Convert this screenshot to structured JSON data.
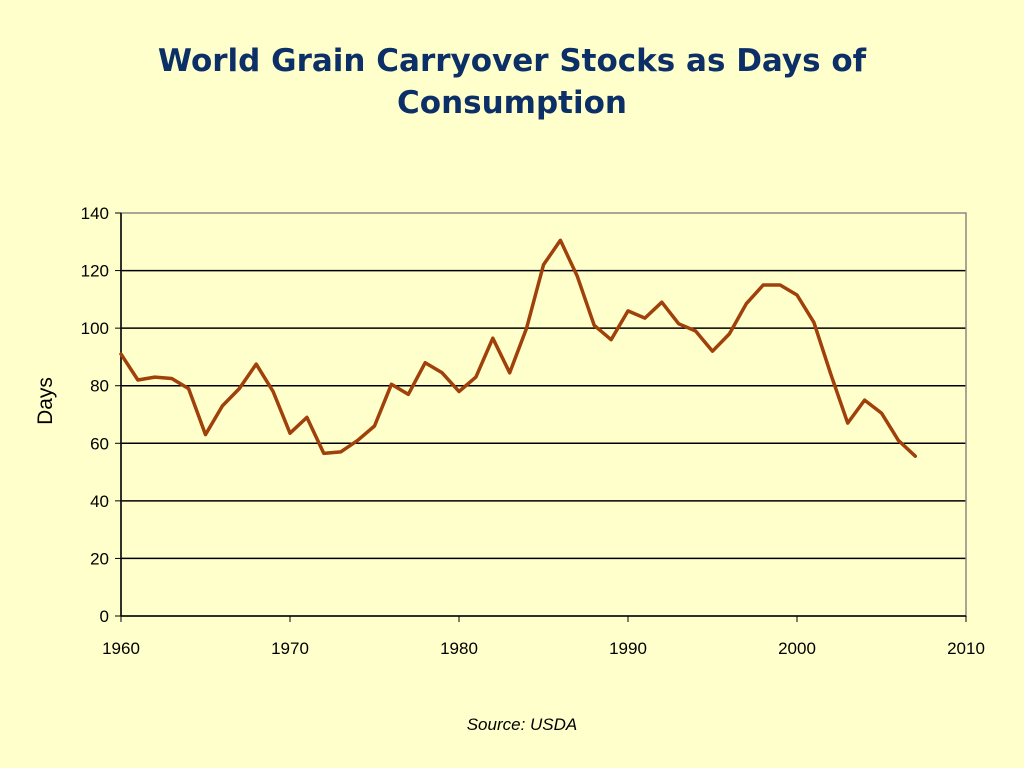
{
  "slide": {
    "title_line1": "World Grain Carryover Stocks as Days of",
    "title_line2": "Consumption",
    "source": "Source: USDA",
    "background": "#FFFFCC",
    "title_color": "#0B2F66"
  },
  "chart_data": {
    "type": "line",
    "title": "World Grain Carryover Stocks as Days of Consumption",
    "xlabel": "",
    "ylabel": "Days",
    "xlim": [
      1960,
      2010
    ],
    "ylim": [
      0,
      140
    ],
    "xticks": [
      1960,
      1970,
      1980,
      1990,
      2000,
      2010
    ],
    "yticks": [
      0,
      20,
      40,
      60,
      80,
      100,
      120,
      140
    ],
    "grid": "horizontal",
    "line_color": "#A0400A",
    "x": [
      1960,
      1961,
      1962,
      1963,
      1964,
      1965,
      1966,
      1967,
      1968,
      1969,
      1970,
      1971,
      1972,
      1973,
      1974,
      1975,
      1976,
      1977,
      1978,
      1979,
      1980,
      1981,
      1982,
      1983,
      1984,
      1985,
      1986,
      1987,
      1988,
      1989,
      1990,
      1991,
      1992,
      1993,
      1994,
      1995,
      1996,
      1997,
      1998,
      1999,
      2000,
      2001,
      2002,
      2003,
      2004,
      2005,
      2006,
      2007
    ],
    "series": [
      {
        "values": [
          91,
          82,
          83,
          82.5,
          79,
          63,
          73,
          79,
          87.5,
          78,
          63.5,
          69,
          56.5,
          57,
          61,
          66,
          80.5,
          77,
          88,
          84.5,
          78,
          83,
          96.5,
          84.5,
          100,
          122,
          130.5,
          118,
          101,
          96,
          106,
          103.5,
          109,
          101.5,
          99,
          92,
          98,
          108.5,
          115,
          115,
          111.5,
          102,
          84,
          67,
          75,
          70.5,
          61,
          55.5
        ]
      }
    ]
  }
}
